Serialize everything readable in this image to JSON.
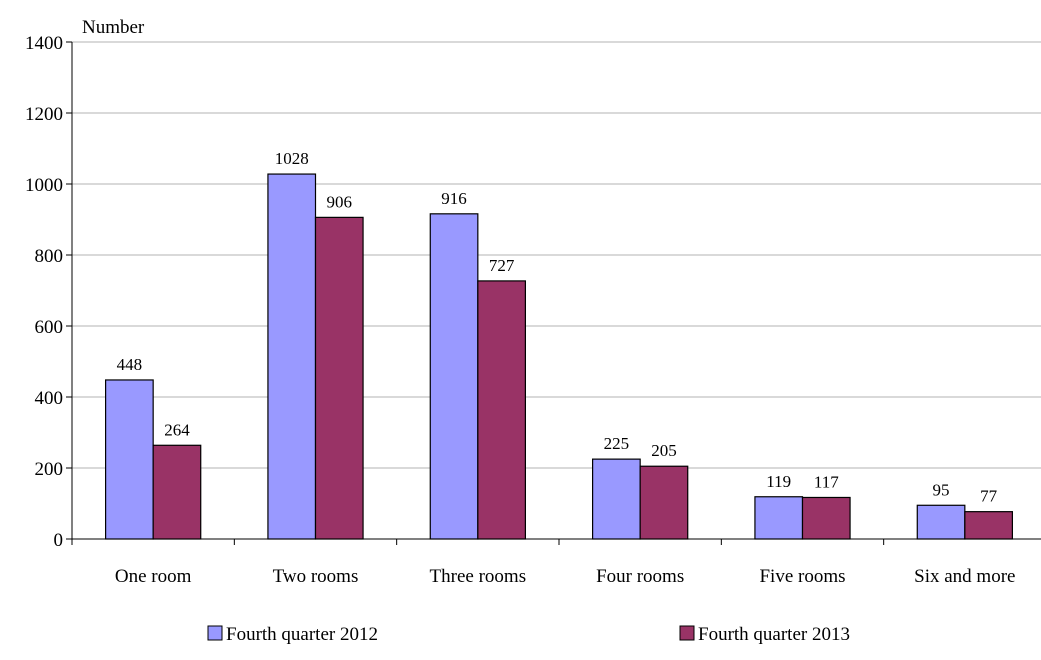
{
  "chart_data": {
    "type": "bar",
    "unit_label": "Number",
    "categories": [
      "One room",
      "Two rooms",
      "Three rooms",
      "Four rooms",
      "Five rooms",
      "Six and more"
    ],
    "series": [
      {
        "name": "Fourth quarter 2012",
        "color": "#9999ff",
        "values": [
          448,
          1028,
          916,
          225,
          119,
          95
        ]
      },
      {
        "name": "Fourth quarter 2013",
        "color": "#993366",
        "values": [
          264,
          906,
          727,
          205,
          117,
          77
        ]
      }
    ],
    "ylim": [
      0,
      1400
    ],
    "yticks": [
      0,
      200,
      400,
      600,
      800,
      1000,
      1200,
      1400
    ],
    "grid": true,
    "legend_position": "bottom"
  }
}
